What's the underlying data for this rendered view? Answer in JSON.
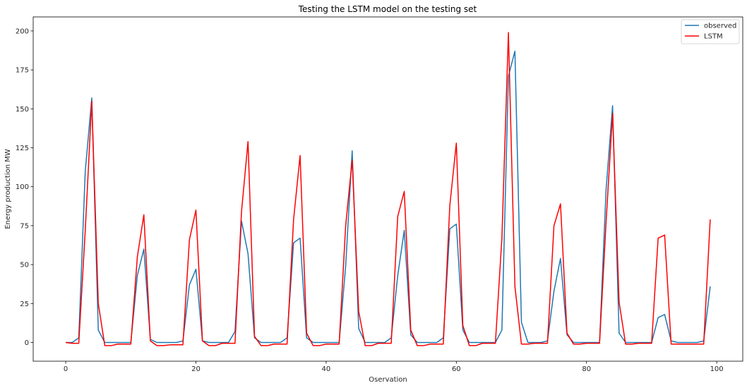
{
  "chart_data": {
    "type": "line",
    "title": "Testing the LSTM model on the testing set",
    "xlabel": "Oservation",
    "ylabel": "Energy production MW",
    "xlim": [
      -5,
      104
    ],
    "ylim": [
      -12,
      209
    ],
    "xticks": [
      0,
      20,
      40,
      60,
      80,
      100
    ],
    "yticks": [
      0,
      25,
      50,
      75,
      100,
      125,
      150,
      175,
      200
    ],
    "grid": false,
    "legend_position": "top-right",
    "series": [
      {
        "name": "observed",
        "color": "#1f77b4",
        "values": [
          0,
          0,
          3,
          110,
          157,
          8,
          0,
          0,
          0,
          0,
          0,
          43,
          60,
          2,
          0,
          0,
          0,
          0,
          1,
          37,
          47,
          1,
          0,
          0,
          0,
          0,
          7,
          78,
          57,
          3,
          0,
          0,
          0,
          0,
          3,
          64,
          67,
          3,
          0,
          0,
          0,
          0,
          0,
          49,
          123,
          9,
          0,
          0,
          0,
          0,
          3,
          43,
          72,
          5,
          0,
          0,
          0,
          0,
          3,
          73,
          76,
          8,
          0,
          0,
          0,
          0,
          0,
          8,
          171,
          187,
          13,
          0,
          0,
          0,
          1,
          33,
          54,
          5,
          0,
          0,
          0,
          0,
          0,
          98,
          152,
          6,
          0,
          0,
          0,
          0,
          0,
          16,
          18,
          1,
          0,
          0,
          0,
          0,
          1,
          36
        ]
      },
      {
        "name": "LSTM",
        "color": "#ff0000",
        "values": [
          0,
          -0.5,
          -0.5,
          72,
          155,
          25,
          -2,
          -2,
          -1,
          -1,
          -1,
          55,
          82,
          1,
          -2,
          -2,
          -1.5,
          -1.5,
          -1.5,
          66,
          85,
          1,
          -2,
          -2,
          -0.5,
          -0.5,
          -0.5,
          84,
          129,
          4,
          -2,
          -2,
          -1,
          -1,
          -1,
          79,
          120,
          6,
          -2,
          -2,
          -1,
          -1,
          -1,
          75,
          117,
          20,
          -2,
          -2,
          -0.5,
          -0.5,
          -0.5,
          81,
          97,
          8,
          -2,
          -2,
          -1,
          -1,
          -1,
          88,
          128,
          11,
          -2,
          -2,
          -0.5,
          -0.5,
          -0.5,
          67,
          199,
          36,
          -1,
          -1,
          -0.5,
          -0.5,
          -0.5,
          75,
          89,
          6,
          -1,
          -1,
          -0.5,
          -0.5,
          -0.5,
          77,
          147,
          26,
          -1,
          -1,
          -0.5,
          -0.5,
          -0.5,
          67,
          69,
          -1,
          -1,
          -1,
          -1,
          -1,
          -1,
          79
        ]
      }
    ]
  }
}
